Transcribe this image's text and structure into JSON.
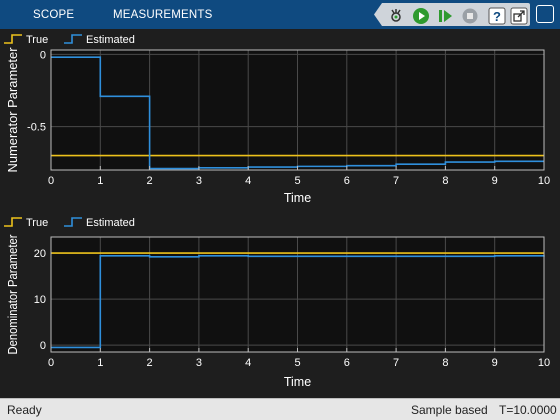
{
  "toolstrip": {
    "tabs": [
      {
        "label": "SCOPE"
      },
      {
        "label": "MEASUREMENTS"
      }
    ],
    "buttons": [
      "step-back-icon",
      "run-icon",
      "step-forward-icon",
      "stop-icon",
      "help-icon",
      "undock-icon"
    ]
  },
  "colors": {
    "true_line": "#edc21b",
    "estimated_line": "#2f8fdc",
    "axes_bg": "#101010",
    "figure_bg": "#1e1e1e",
    "grid": "#4a4a4a",
    "text": "#ffffff"
  },
  "plots": [
    {
      "legend": {
        "true_label": "True",
        "estimated_label": "Estimated"
      },
      "chart_data": {
        "type": "line",
        "xlabel": "Time",
        "ylabel": "Numerator Parameter",
        "xlim": [
          0,
          10
        ],
        "ylim": [
          -0.8,
          0.03
        ],
        "xticks": [
          "0",
          "1",
          "2",
          "3",
          "4",
          "5",
          "6",
          "7",
          "8",
          "9",
          "10"
        ],
        "yticks": [
          {
            "v": 0,
            "label": "0"
          },
          {
            "v": -0.5,
            "label": "-0.5"
          }
        ],
        "grid": true,
        "series": [
          {
            "name": "True",
            "step": true,
            "x": [
              0,
              10
            ],
            "y": [
              -0.7,
              -0.7
            ]
          },
          {
            "name": "Estimated",
            "step": true,
            "x": [
              0,
              1,
              2,
              3,
              4,
              5,
              6,
              7,
              8,
              9,
              10
            ],
            "y": [
              -0.02,
              -0.29,
              -0.79,
              -0.785,
              -0.78,
              -0.775,
              -0.77,
              -0.76,
              -0.745,
              -0.74,
              -0.74
            ]
          }
        ]
      }
    },
    {
      "legend": {
        "true_label": "True",
        "estimated_label": "Estimated"
      },
      "chart_data": {
        "type": "line",
        "xlabel": "Time",
        "ylabel": "Denominator Parameter",
        "xlim": [
          0,
          10
        ],
        "ylim": [
          -1.5,
          23.5
        ],
        "xticks": [
          "0",
          "1",
          "2",
          "3",
          "4",
          "5",
          "6",
          "7",
          "8",
          "9",
          "10"
        ],
        "yticks": [
          {
            "v": 20,
            "label": "20"
          },
          {
            "v": 10,
            "label": "10"
          },
          {
            "v": 0,
            "label": "0"
          }
        ],
        "grid": true,
        "series": [
          {
            "name": "True",
            "step": true,
            "x": [
              0,
              10
            ],
            "y": [
              20,
              20
            ]
          },
          {
            "name": "Estimated",
            "step": true,
            "x": [
              0,
              1,
              2,
              3,
              4,
              5,
              6,
              7,
              8,
              9,
              10
            ],
            "y": [
              -0.5,
              19.4,
              19.2,
              19.4,
              19.3,
              19.3,
              19.3,
              19.3,
              19.3,
              19.4,
              19.5
            ]
          }
        ]
      }
    }
  ],
  "status": {
    "left": "Ready",
    "mode": "Sample based",
    "time": "T=10.0000"
  }
}
